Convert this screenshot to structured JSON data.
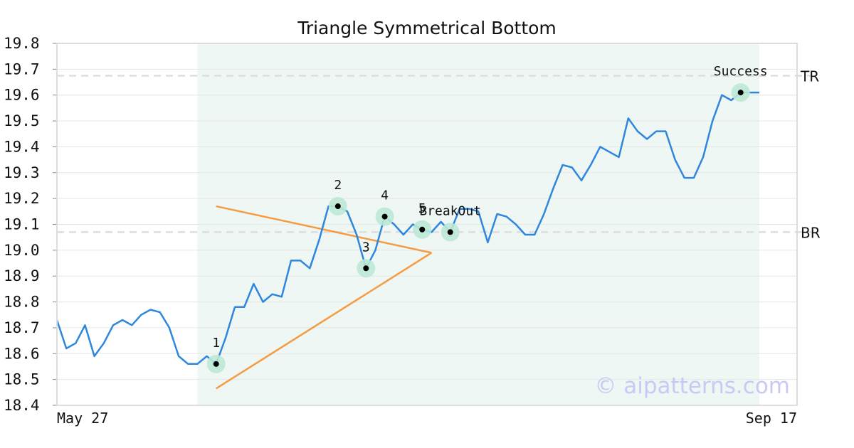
{
  "chart_data": {
    "type": "line",
    "title": "Triangle Symmetrical Bottom",
    "xlabel": "",
    "ylabel": "",
    "ylim": [
      18.4,
      19.8
    ],
    "yticks": [
      "18.4",
      "18.5",
      "18.6",
      "18.7",
      "18.8",
      "18.9",
      "19.0",
      "19.1",
      "19.2",
      "19.3",
      "19.4",
      "19.5",
      "19.6",
      "19.7",
      "19.8"
    ],
    "x_tick_labels": [
      {
        "index": 0,
        "label": "May 27"
      },
      {
        "index": 75,
        "label": "Sep 17"
      }
    ],
    "grid": true,
    "watermark": "© aipatterns.com",
    "colors": {
      "price": "#2e86de",
      "trendline": "#f59c42",
      "pattern_region": "#eef7f3",
      "marker_ring": "#bde8d5",
      "level_line": "#dddddd",
      "frame": "#dddddd"
    },
    "pattern_region": {
      "start_index": 15,
      "end_index": 75
    },
    "series": [
      {
        "values": [
          18.73,
          18.62,
          18.64,
          18.71,
          18.59,
          18.64,
          18.71,
          18.73,
          18.71,
          18.75,
          18.77,
          18.76,
          18.7,
          18.59,
          18.56,
          18.56,
          18.59,
          18.56,
          18.66,
          18.78,
          18.78,
          18.87,
          18.8,
          18.83,
          18.82,
          18.96,
          18.96,
          18.93,
          19.04,
          19.17,
          19.17,
          19.15,
          19.06,
          18.93,
          19.0,
          19.13,
          19.1,
          19.06,
          19.1,
          19.08,
          19.07,
          19.11,
          19.07,
          19.16,
          19.16,
          19.15,
          19.03,
          19.14,
          19.13,
          19.1,
          19.06,
          19.06,
          19.14,
          19.24,
          19.33,
          19.32,
          19.27,
          19.33,
          19.4,
          19.38,
          19.36,
          19.51,
          19.46,
          19.43,
          19.46,
          19.46,
          19.35,
          19.28,
          19.28,
          19.36,
          19.5,
          19.6,
          19.58,
          19.61,
          19.61,
          19.61
        ]
      }
    ],
    "levels": [
      {
        "label": "TR",
        "value": 19.675
      },
      {
        "label": "BR",
        "value": 19.07
      }
    ],
    "trendlines": [
      {
        "from": {
          "index": 17,
          "value": 19.17
        },
        "to": {
          "index": 40,
          "value": 18.99
        }
      },
      {
        "from": {
          "index": 17,
          "value": 18.465
        },
        "to": {
          "index": 40,
          "value": 18.99
        }
      }
    ],
    "points": [
      {
        "label": "1",
        "index": 17,
        "value": 18.56,
        "label_pos": "above"
      },
      {
        "label": "2",
        "index": 30,
        "value": 19.17,
        "label_pos": "above"
      },
      {
        "label": "3",
        "index": 33,
        "value": 18.93,
        "label_pos": "above"
      },
      {
        "label": "4",
        "index": 35,
        "value": 19.13,
        "label_pos": "above"
      },
      {
        "label": "5",
        "index": 39,
        "value": 19.08,
        "label_pos": "above"
      },
      {
        "label": "BreakOut",
        "index": 42,
        "value": 19.07,
        "label_pos": "above"
      },
      {
        "label": "Success",
        "index": 73,
        "value": 19.61,
        "label_pos": "above"
      }
    ]
  }
}
